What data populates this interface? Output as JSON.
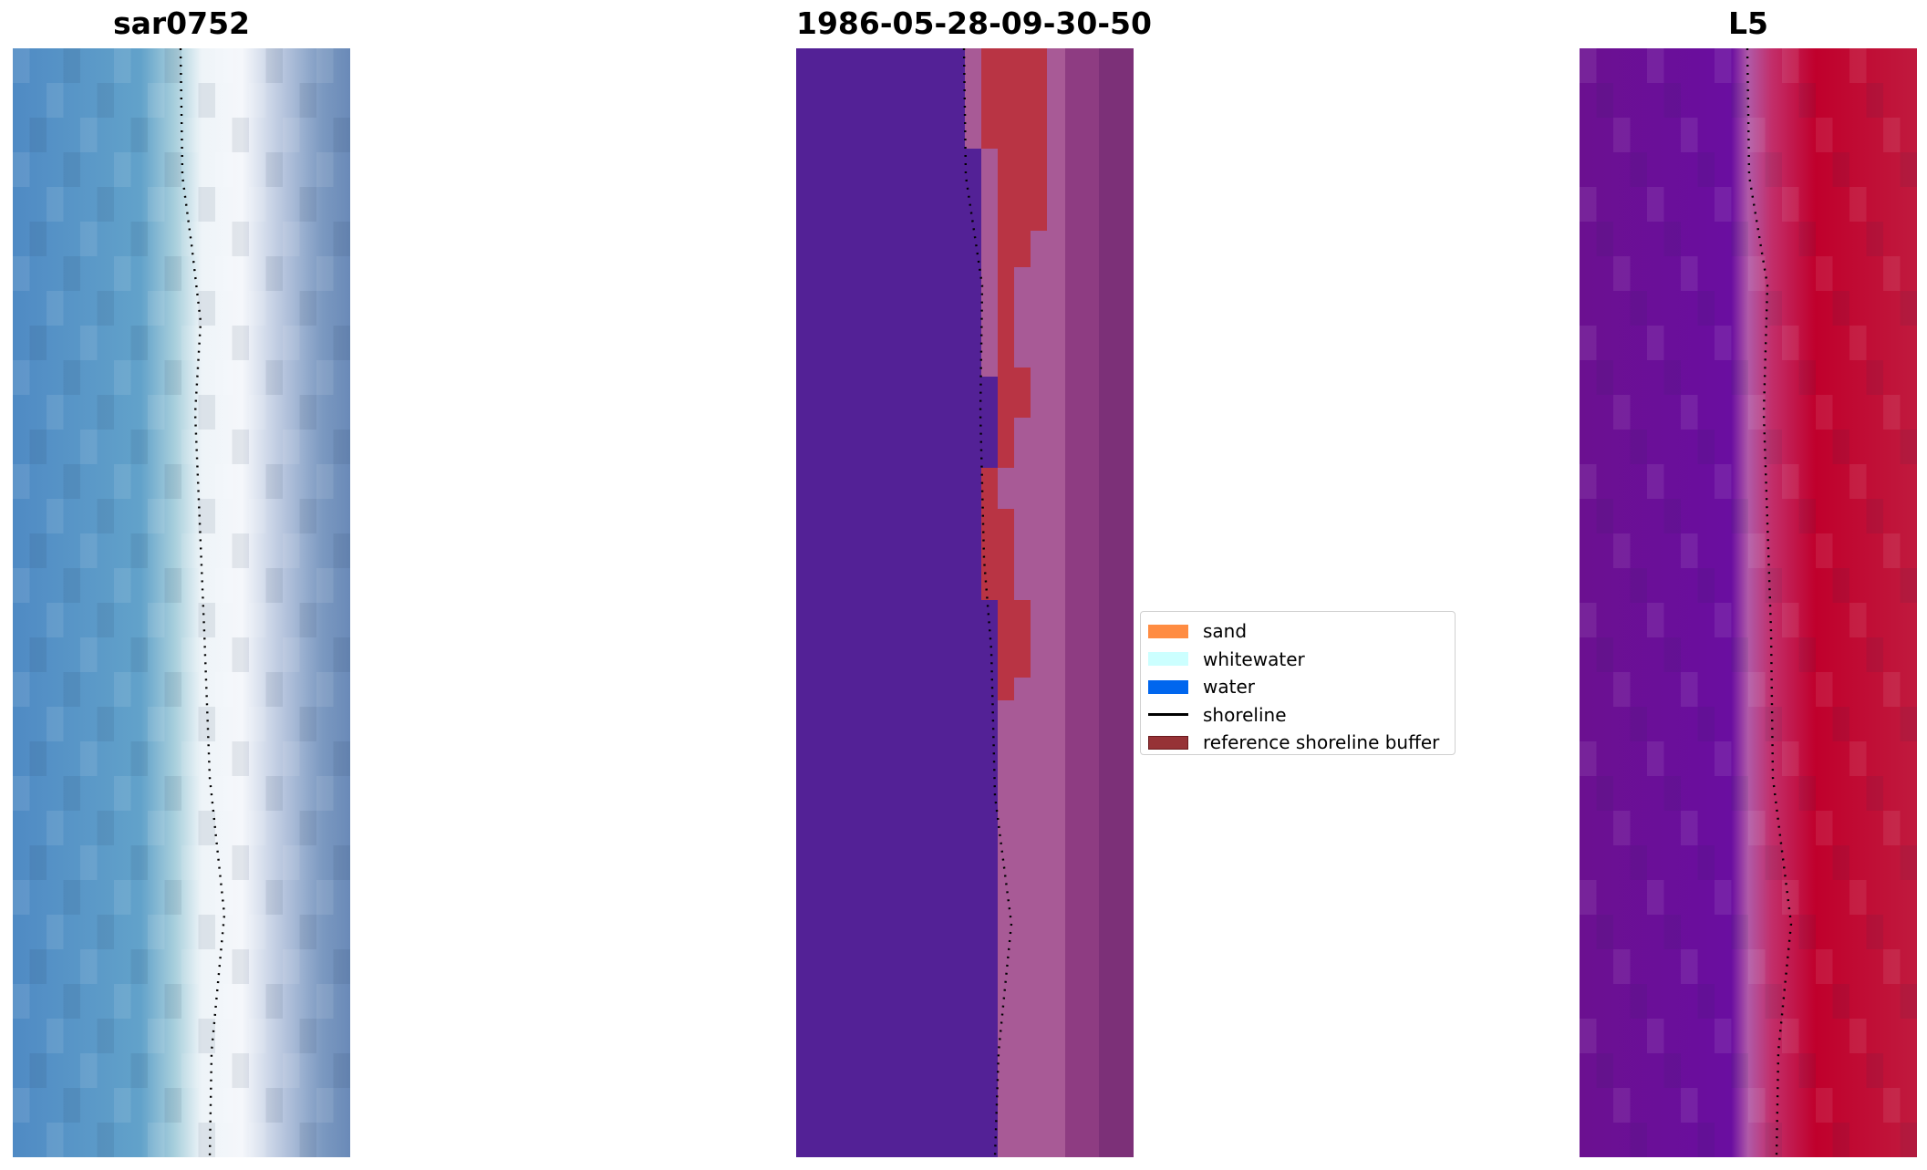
{
  "panels": [
    {
      "title": "sar0752"
    },
    {
      "title": "1986-05-28-09-30-50"
    },
    {
      "title": "L5"
    }
  ],
  "legend": {
    "items": [
      {
        "label": "sand",
        "color": "#ff8c42",
        "kind": "patch"
      },
      {
        "label": "whitewater",
        "color": "#ccffff",
        "kind": "patch"
      },
      {
        "label": "water",
        "color": "#0066ee",
        "kind": "patch"
      },
      {
        "label": "shoreline",
        "color": "#000000",
        "kind": "line"
      },
      {
        "label": "reference shoreline buffer",
        "color": "#963236",
        "kind": "patch"
      }
    ]
  },
  "colors": {
    "rgb_water": "#5a96c8",
    "rgb_whitewater": "#f6f8fc",
    "class_water": "#532196",
    "class_buffer": "#b93444",
    "class_sand_buffer": "#a85a96",
    "swir_purple": "#6b1090",
    "swir_red": "#c0002c"
  }
}
